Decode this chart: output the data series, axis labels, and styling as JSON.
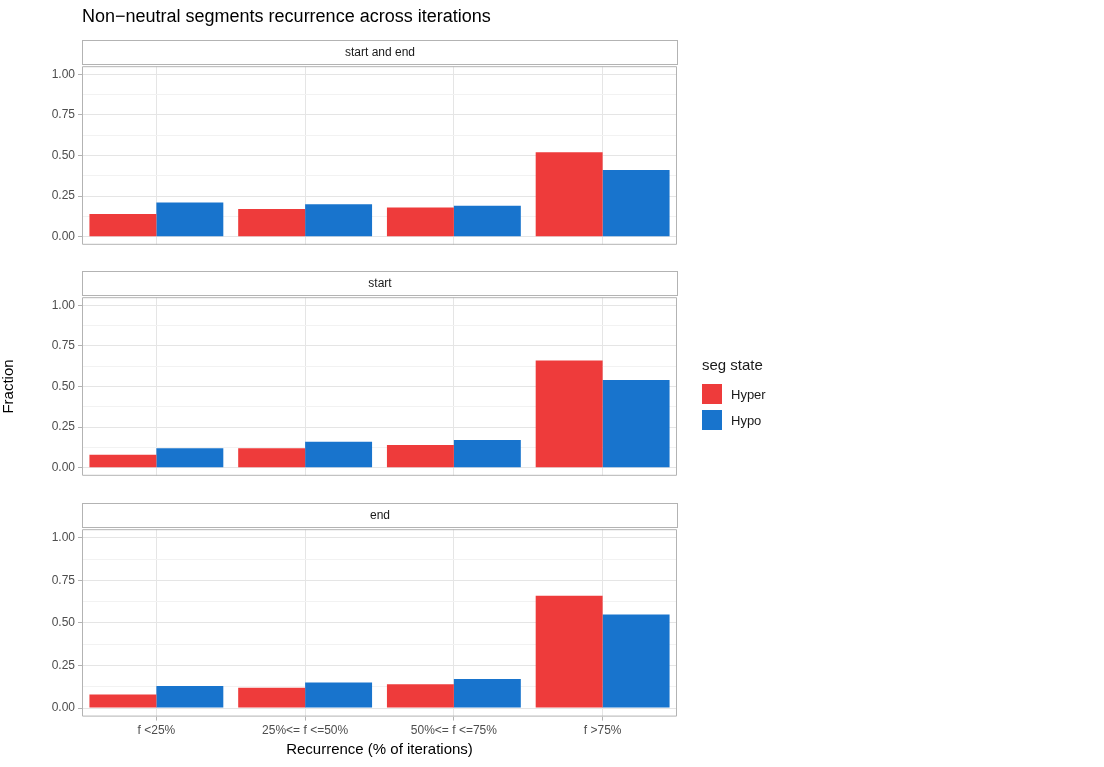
{
  "chart_data": [
    {
      "type": "bar",
      "title": "Non−neutral segments recurrence across iterations",
      "subtitle": "start and end",
      "categories": [
        null,
        null,
        null,
        null
      ],
      "series": [
        {
          "color": "#ee3b3b",
          "values": [
            0.14,
            0.17,
            0.18,
            0.52
          ]
        },
        {
          "color": "#1874cd",
          "values": [
            0.21,
            0.2,
            0.19,
            0.41
          ]
        }
      ],
      "ylim": [
        -0.05,
        1.05
      ],
      "yticks": [
        {
          "value": 0,
          "label": "0.00"
        },
        {
          "value": 0.125,
          "label": null
        },
        {
          "value": 0.25,
          "label": "0.25"
        },
        {
          "value": 0.375,
          "label": null
        },
        {
          "value": 0.5,
          "label": "0.50"
        },
        {
          "value": 0.625,
          "label": null
        },
        {
          "value": 0.75,
          "label": "0.75"
        },
        {
          "value": 0.875,
          "label": null
        },
        {
          "value": 1,
          "label": "1.00"
        }
      ],
      "grid": true,
      "tick_labels": "y"
    },
    {
      "type": "bar",
      "subtitle": "start",
      "ylabel": "Fraction",
      "legend": "right",
      "legend_title": "seg state",
      "categories": [
        null,
        null,
        null,
        null
      ],
      "series": [
        {
          "name": "Hyper",
          "color": "#ee3b3b",
          "values": [
            0.08,
            0.12,
            0.14,
            0.66
          ]
        },
        {
          "name": "Hypo",
          "color": "#1874cd",
          "values": [
            0.12,
            0.16,
            0.17,
            0.54
          ]
        }
      ],
      "ylim": [
        -0.05,
        1.05
      ],
      "yticks": [
        {
          "value": 0,
          "label": "0.00"
        },
        {
          "value": 0.125,
          "label": null
        },
        {
          "value": 0.25,
          "label": "0.25"
        },
        {
          "value": 0.375,
          "label": null
        },
        {
          "value": 0.5,
          "label": "0.50"
        },
        {
          "value": 0.625,
          "label": null
        },
        {
          "value": 0.75,
          "label": "0.75"
        },
        {
          "value": 0.875,
          "label": null
        },
        {
          "value": 1,
          "label": "1.00"
        }
      ],
      "grid": true,
      "tick_labels": "y"
    },
    {
      "type": "bar",
      "subtitle": "end",
      "xlabel": "Recurrence (% of iterations)",
      "categories": [
        "f <25%",
        "25%<= f <=50%",
        "50%<= f <=75%",
        "f >75%"
      ],
      "series": [
        {
          "color": "#ee3b3b",
          "values": [
            0.08,
            0.12,
            0.14,
            0.66
          ]
        },
        {
          "color": "#1874cd",
          "values": [
            0.13,
            0.15,
            0.17,
            0.55
          ]
        }
      ],
      "ylim": [
        -0.05,
        1.05
      ],
      "yticks": [
        {
          "value": 0,
          "label": "0.00"
        },
        {
          "value": 0.125,
          "label": null
        },
        {
          "value": 0.25,
          "label": "0.25"
        },
        {
          "value": 0.375,
          "label": null
        },
        {
          "value": 0.5,
          "label": "0.50"
        },
        {
          "value": 0.625,
          "label": null
        },
        {
          "value": 0.75,
          "label": "0.75"
        },
        {
          "value": 0.875,
          "label": null
        },
        {
          "value": 1,
          "label": "1.00"
        }
      ],
      "grid": true
    }
  ]
}
